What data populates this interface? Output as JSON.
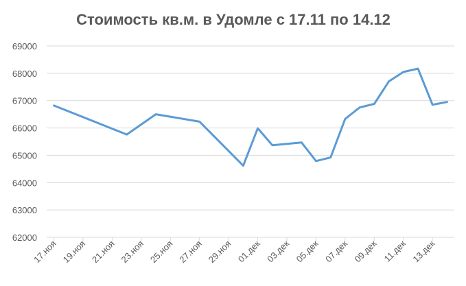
{
  "chart_data": {
    "type": "line",
    "title": "Стоимость кв.м. в Удомле с 17.11 по 14.12",
    "x": [
      "17.ноя",
      "22.ноя",
      "24.ноя",
      "27.ноя",
      "30.ноя",
      "01.дек",
      "02.дек",
      "04.дек",
      "05.дек",
      "06.дек",
      "07.дек",
      "08.дек",
      "09.дек",
      "10.дек",
      "11.дек",
      "12.дек",
      "13.дек",
      "14.дек"
    ],
    "series": [
      {
        "name": "Стоимость кв.м.",
        "color": "#5b9bd5",
        "values": [
          66820,
          65760,
          66500,
          66230,
          64620,
          65990,
          65370,
          65470,
          64790,
          64920,
          66330,
          66750,
          66880,
          67700,
          68050,
          68170,
          66850,
          66950
        ]
      }
    ],
    "xlim": [
      "17.ноя",
      "14.дек"
    ],
    "xticks": [
      "17.ноя",
      "19.ноя",
      "21.ноя",
      "23.ноя",
      "25.ноя",
      "27.ноя",
      "29.ноя",
      "01.дек",
      "03.дек",
      "05.дек",
      "07.дек",
      "09.дек",
      "11.дек",
      "13.дек"
    ],
    "ylim": [
      62000,
      69000
    ],
    "yticks": [
      62000,
      63000,
      64000,
      65000,
      66000,
      67000,
      68000,
      69000
    ],
    "grid": true
  }
}
